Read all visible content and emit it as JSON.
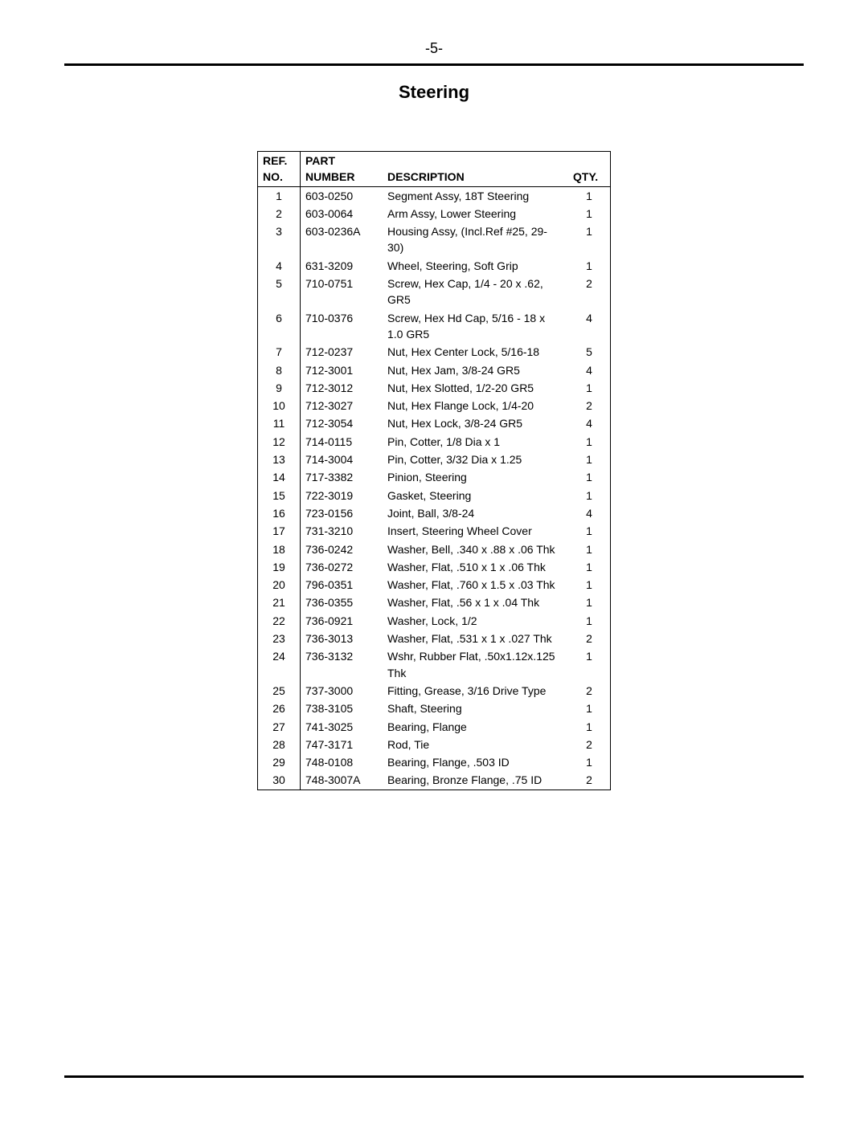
{
  "page_number": "-5-",
  "title": "Steering",
  "headers": {
    "ref_line1": "REF.",
    "ref_line2": "NO.",
    "part_line1": "PART",
    "part_line2": "NUMBER",
    "description": "DESCRIPTION",
    "qty": "QTY."
  },
  "rows": [
    {
      "ref": "1",
      "num": "603-0250",
      "desc": "Segment Assy, 18T Steering",
      "qty": "1"
    },
    {
      "ref": "2",
      "num": "603-0064",
      "desc": "Arm Assy, Lower Steering",
      "qty": "1"
    },
    {
      "ref": "3",
      "num": "603-0236A",
      "desc": "Housing Assy, (Incl.Ref #25, 29-30)",
      "qty": "1"
    },
    {
      "ref": "4",
      "num": "631-3209",
      "desc": "Wheel, Steering, Soft Grip",
      "qty": "1"
    },
    {
      "ref": "5",
      "num": "710-0751",
      "desc": "Screw, Hex Cap, 1/4 - 20 x .62, GR5",
      "qty": "2"
    },
    {
      "ref": "6",
      "num": "710-0376",
      "desc": "Screw, Hex Hd Cap, 5/16 - 18 x 1.0 GR5",
      "qty": "4"
    },
    {
      "ref": "7",
      "num": "712-0237",
      "desc": "Nut, Hex Center Lock, 5/16-18",
      "qty": "5"
    },
    {
      "ref": "8",
      "num": "712-3001",
      "desc": "Nut, Hex Jam, 3/8-24 GR5",
      "qty": "4"
    },
    {
      "ref": "9",
      "num": "712-3012",
      "desc": "Nut, Hex Slotted, 1/2-20 GR5",
      "qty": "1"
    },
    {
      "ref": "10",
      "num": "712-3027",
      "desc": "Nut, Hex Flange Lock, 1/4-20",
      "qty": "2"
    },
    {
      "ref": "11",
      "num": "712-3054",
      "desc": "Nut, Hex Lock, 3/8-24 GR5",
      "qty": "4"
    },
    {
      "ref": "12",
      "num": "714-0115",
      "desc": "Pin, Cotter, 1/8 Dia x 1",
      "qty": "1"
    },
    {
      "ref": "13",
      "num": "714-3004",
      "desc": "Pin, Cotter, 3/32 Dia x 1.25",
      "qty": "1"
    },
    {
      "ref": "14",
      "num": "717-3382",
      "desc": "Pinion, Steering",
      "qty": "1"
    },
    {
      "ref": "15",
      "num": "722-3019",
      "desc": "Gasket, Steering",
      "qty": "1"
    },
    {
      "ref": "16",
      "num": "723-0156",
      "desc": "Joint, Ball, 3/8-24",
      "qty": "4"
    },
    {
      "ref": "17",
      "num": "731-3210",
      "desc": "Insert, Steering Wheel Cover",
      "qty": "1"
    },
    {
      "ref": "18",
      "num": "736-0242",
      "desc": "Washer, Bell, .340 x .88 x .06 Thk",
      "qty": "1"
    },
    {
      "ref": "19",
      "num": "736-0272",
      "desc": "Washer, Flat, .510 x 1 x .06 Thk",
      "qty": "1"
    },
    {
      "ref": "20",
      "num": "796-0351",
      "desc": "Washer, Flat, .760 x 1.5 x .03 Thk",
      "qty": "1"
    },
    {
      "ref": "21",
      "num": "736-0355",
      "desc": "Washer, Flat, .56 x 1 x .04 Thk",
      "qty": "1"
    },
    {
      "ref": "22",
      "num": "736-0921",
      "desc": "Washer, Lock, 1/2",
      "qty": "1"
    },
    {
      "ref": "23",
      "num": "736-3013",
      "desc": "Washer, Flat, .531 x 1 x .027 Thk",
      "qty": "2"
    },
    {
      "ref": "24",
      "num": "736-3132",
      "desc": "Wshr, Rubber Flat, .50x1.12x.125 Thk",
      "qty": "1"
    },
    {
      "ref": "25",
      "num": "737-3000",
      "desc": "Fitting, Grease, 3/16 Drive Type",
      "qty": "2"
    },
    {
      "ref": "26",
      "num": "738-3105",
      "desc": "Shaft, Steering",
      "qty": "1"
    },
    {
      "ref": "27",
      "num": "741-3025",
      "desc": "Bearing, Flange",
      "qty": "1"
    },
    {
      "ref": "28",
      "num": "747-3171",
      "desc": "Rod, Tie",
      "qty": "2"
    },
    {
      "ref": "29",
      "num": "748-0108",
      "desc": "Bearing, Flange, .503 ID",
      "qty": "1"
    },
    {
      "ref": "30",
      "num": "748-3007A",
      "desc": "Bearing, Bronze Flange, .75 ID",
      "qty": "2"
    }
  ]
}
